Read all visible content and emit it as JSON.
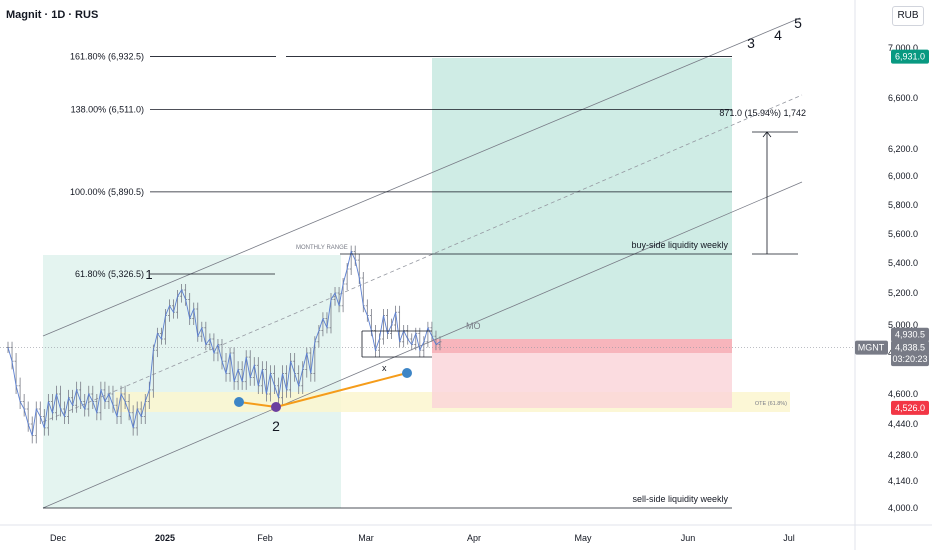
{
  "header": {
    "title": "Magnit · 1D · RUS",
    "currency": "RUB"
  },
  "chart_data": {
    "type": "candlestick-annotated",
    "symbol": "MGNT",
    "ylim": [
      3960,
      7150
    ],
    "x_ticks": [
      "Dec",
      "2025",
      "Feb",
      "Mar",
      "Apr",
      "May",
      "Jun",
      "Jul"
    ],
    "y_ticks": [
      4000,
      4140,
      4280,
      4440,
      4600,
      4800,
      5000,
      5200,
      5400,
      5600,
      5800,
      6000,
      6200,
      6600,
      7000
    ],
    "y_tick_labels": [
      "4,000.0",
      "4,140.0",
      "4,280.0",
      "4,440.0",
      "4,600.0",
      "4,800.0",
      "5,000.0",
      "5,200.0",
      "5,400.0",
      "5,600.0",
      "5,800.0",
      "6,000.0",
      "6,200.0",
      "6,600.0",
      "7,000.0"
    ],
    "price_labels": [
      {
        "text": "6,931.0",
        "value": 6931,
        "color": "#089981"
      },
      {
        "text": "4,930.5",
        "value": 4930.5,
        "color": "#787b86"
      },
      {
        "text": "4,838.5",
        "value": 4838.5,
        "color": "#787b86"
      },
      {
        "text": "03:20:23",
        "value": 4770,
        "color": "#787b86"
      },
      {
        "text": "4,526.0",
        "value": 4526,
        "color": "#f23645"
      }
    ],
    "symbol_tag": "MGNT",
    "fib_levels": [
      {
        "label": "161.80% (6,932.5)",
        "value": 6932.5
      },
      {
        "label": "138.00% (6,511.0)",
        "value": 6511
      },
      {
        "label": "100.00% (5,890.5)",
        "value": 5890.5
      },
      {
        "label": "61.80% (5,326.5)",
        "value": 5326.5
      }
    ],
    "annotations": {
      "monthly_range": "MONTHLY RANGE",
      "buy_side": "buy-side liquidity weekly",
      "sell_side": "sell-side liquidity weekly",
      "mo": "MO",
      "ote": "OTE (61.8%)",
      "measure": "871.0 (15.94%) 1,742",
      "x_mark": "x",
      "wave_labels": [
        "1",
        "2",
        "3",
        "4",
        "5"
      ]
    },
    "series": [
      {
        "values": [
          4840,
          4760,
          4640,
          4560,
          4520,
          4440,
          4380,
          4520,
          4480,
          4420,
          4560,
          4500,
          4600,
          4520,
          4480,
          4580,
          4540,
          4620,
          4560,
          4520,
          4600,
          4560,
          4500,
          4620,
          4560,
          4600,
          4540,
          4480,
          4600,
          4560,
          4500,
          4420,
          4520,
          4480,
          4560,
          4620,
          4820,
          4940,
          4900,
          5060,
          5120,
          5080,
          5180,
          5220,
          5160,
          5040,
          5100,
          4920,
          4980,
          4860,
          4900,
          4800,
          4860,
          4760,
          4700,
          4800,
          4660,
          4720,
          4660,
          4780,
          4680,
          4740,
          4640,
          4720,
          4600,
          4700,
          4640,
          4580,
          4700,
          4620,
          4760,
          4700,
          4640,
          4720,
          4800,
          4700,
          4880,
          4960,
          5040,
          4980,
          5160,
          5200,
          5120,
          5260,
          5360,
          5480,
          5420,
          5300,
          5120,
          5060,
          4960,
          4820,
          4900,
          5060,
          4940,
          5000,
          5080,
          4880,
          4960,
          4900,
          4860,
          4940,
          4820,
          4880,
          4980,
          4920,
          4860,
          4880
        ]
      }
    ]
  }
}
